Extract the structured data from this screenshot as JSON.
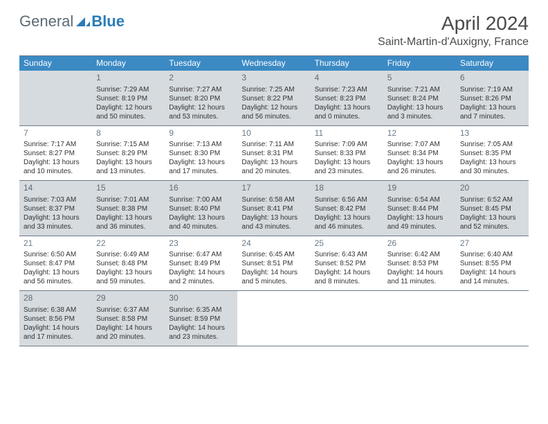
{
  "logo": {
    "general": "General",
    "blue": "Blue"
  },
  "title": "April 2024",
  "location": "Saint-Martin-d'Auxigny, France",
  "colors": {
    "header_bar": "#3b8ac4",
    "shaded_cell": "#d6dbdf",
    "border": "#6b7a88",
    "text": "#333333",
    "logo_gray": "#5c6a72",
    "logo_blue": "#2a7bb8"
  },
  "weekdays": [
    "Sunday",
    "Monday",
    "Tuesday",
    "Wednesday",
    "Thursday",
    "Friday",
    "Saturday"
  ],
  "weeks": [
    [
      {
        "num": "",
        "sunrise": "",
        "sunset": "",
        "day1": "",
        "day2": "",
        "shaded": true
      },
      {
        "num": "1",
        "sunrise": "Sunrise: 7:29 AM",
        "sunset": "Sunset: 8:19 PM",
        "day1": "Daylight: 12 hours",
        "day2": "and 50 minutes.",
        "shaded": true
      },
      {
        "num": "2",
        "sunrise": "Sunrise: 7:27 AM",
        "sunset": "Sunset: 8:20 PM",
        "day1": "Daylight: 12 hours",
        "day2": "and 53 minutes.",
        "shaded": true
      },
      {
        "num": "3",
        "sunrise": "Sunrise: 7:25 AM",
        "sunset": "Sunset: 8:22 PM",
        "day1": "Daylight: 12 hours",
        "day2": "and 56 minutes.",
        "shaded": true
      },
      {
        "num": "4",
        "sunrise": "Sunrise: 7:23 AM",
        "sunset": "Sunset: 8:23 PM",
        "day1": "Daylight: 13 hours",
        "day2": "and 0 minutes.",
        "shaded": true
      },
      {
        "num": "5",
        "sunrise": "Sunrise: 7:21 AM",
        "sunset": "Sunset: 8:24 PM",
        "day1": "Daylight: 13 hours",
        "day2": "and 3 minutes.",
        "shaded": true
      },
      {
        "num": "6",
        "sunrise": "Sunrise: 7:19 AM",
        "sunset": "Sunset: 8:26 PM",
        "day1": "Daylight: 13 hours",
        "day2": "and 7 minutes.",
        "shaded": true
      }
    ],
    [
      {
        "num": "7",
        "sunrise": "Sunrise: 7:17 AM",
        "sunset": "Sunset: 8:27 PM",
        "day1": "Daylight: 13 hours",
        "day2": "and 10 minutes.",
        "shaded": false
      },
      {
        "num": "8",
        "sunrise": "Sunrise: 7:15 AM",
        "sunset": "Sunset: 8:29 PM",
        "day1": "Daylight: 13 hours",
        "day2": "and 13 minutes.",
        "shaded": false
      },
      {
        "num": "9",
        "sunrise": "Sunrise: 7:13 AM",
        "sunset": "Sunset: 8:30 PM",
        "day1": "Daylight: 13 hours",
        "day2": "and 17 minutes.",
        "shaded": false
      },
      {
        "num": "10",
        "sunrise": "Sunrise: 7:11 AM",
        "sunset": "Sunset: 8:31 PM",
        "day1": "Daylight: 13 hours",
        "day2": "and 20 minutes.",
        "shaded": false
      },
      {
        "num": "11",
        "sunrise": "Sunrise: 7:09 AM",
        "sunset": "Sunset: 8:33 PM",
        "day1": "Daylight: 13 hours",
        "day2": "and 23 minutes.",
        "shaded": false
      },
      {
        "num": "12",
        "sunrise": "Sunrise: 7:07 AM",
        "sunset": "Sunset: 8:34 PM",
        "day1": "Daylight: 13 hours",
        "day2": "and 26 minutes.",
        "shaded": false
      },
      {
        "num": "13",
        "sunrise": "Sunrise: 7:05 AM",
        "sunset": "Sunset: 8:35 PM",
        "day1": "Daylight: 13 hours",
        "day2": "and 30 minutes.",
        "shaded": false
      }
    ],
    [
      {
        "num": "14",
        "sunrise": "Sunrise: 7:03 AM",
        "sunset": "Sunset: 8:37 PM",
        "day1": "Daylight: 13 hours",
        "day2": "and 33 minutes.",
        "shaded": true
      },
      {
        "num": "15",
        "sunrise": "Sunrise: 7:01 AM",
        "sunset": "Sunset: 8:38 PM",
        "day1": "Daylight: 13 hours",
        "day2": "and 36 minutes.",
        "shaded": true
      },
      {
        "num": "16",
        "sunrise": "Sunrise: 7:00 AM",
        "sunset": "Sunset: 8:40 PM",
        "day1": "Daylight: 13 hours",
        "day2": "and 40 minutes.",
        "shaded": true
      },
      {
        "num": "17",
        "sunrise": "Sunrise: 6:58 AM",
        "sunset": "Sunset: 8:41 PM",
        "day1": "Daylight: 13 hours",
        "day2": "and 43 minutes.",
        "shaded": true
      },
      {
        "num": "18",
        "sunrise": "Sunrise: 6:56 AM",
        "sunset": "Sunset: 8:42 PM",
        "day1": "Daylight: 13 hours",
        "day2": "and 46 minutes.",
        "shaded": true
      },
      {
        "num": "19",
        "sunrise": "Sunrise: 6:54 AM",
        "sunset": "Sunset: 8:44 PM",
        "day1": "Daylight: 13 hours",
        "day2": "and 49 minutes.",
        "shaded": true
      },
      {
        "num": "20",
        "sunrise": "Sunrise: 6:52 AM",
        "sunset": "Sunset: 8:45 PM",
        "day1": "Daylight: 13 hours",
        "day2": "and 52 minutes.",
        "shaded": true
      }
    ],
    [
      {
        "num": "21",
        "sunrise": "Sunrise: 6:50 AM",
        "sunset": "Sunset: 8:47 PM",
        "day1": "Daylight: 13 hours",
        "day2": "and 56 minutes.",
        "shaded": false
      },
      {
        "num": "22",
        "sunrise": "Sunrise: 6:49 AM",
        "sunset": "Sunset: 8:48 PM",
        "day1": "Daylight: 13 hours",
        "day2": "and 59 minutes.",
        "shaded": false
      },
      {
        "num": "23",
        "sunrise": "Sunrise: 6:47 AM",
        "sunset": "Sunset: 8:49 PM",
        "day1": "Daylight: 14 hours",
        "day2": "and 2 minutes.",
        "shaded": false
      },
      {
        "num": "24",
        "sunrise": "Sunrise: 6:45 AM",
        "sunset": "Sunset: 8:51 PM",
        "day1": "Daylight: 14 hours",
        "day2": "and 5 minutes.",
        "shaded": false
      },
      {
        "num": "25",
        "sunrise": "Sunrise: 6:43 AM",
        "sunset": "Sunset: 8:52 PM",
        "day1": "Daylight: 14 hours",
        "day2": "and 8 minutes.",
        "shaded": false
      },
      {
        "num": "26",
        "sunrise": "Sunrise: 6:42 AM",
        "sunset": "Sunset: 8:53 PM",
        "day1": "Daylight: 14 hours",
        "day2": "and 11 minutes.",
        "shaded": false
      },
      {
        "num": "27",
        "sunrise": "Sunrise: 6:40 AM",
        "sunset": "Sunset: 8:55 PM",
        "day1": "Daylight: 14 hours",
        "day2": "and 14 minutes.",
        "shaded": false
      }
    ],
    [
      {
        "num": "28",
        "sunrise": "Sunrise: 6:38 AM",
        "sunset": "Sunset: 8:56 PM",
        "day1": "Daylight: 14 hours",
        "day2": "and 17 minutes.",
        "shaded": true
      },
      {
        "num": "29",
        "sunrise": "Sunrise: 6:37 AM",
        "sunset": "Sunset: 8:58 PM",
        "day1": "Daylight: 14 hours",
        "day2": "and 20 minutes.",
        "shaded": true
      },
      {
        "num": "30",
        "sunrise": "Sunrise: 6:35 AM",
        "sunset": "Sunset: 8:59 PM",
        "day1": "Daylight: 14 hours",
        "day2": "and 23 minutes.",
        "shaded": true
      },
      {
        "num": "",
        "sunrise": "",
        "sunset": "",
        "day1": "",
        "day2": "",
        "shaded": false
      },
      {
        "num": "",
        "sunrise": "",
        "sunset": "",
        "day1": "",
        "day2": "",
        "shaded": false
      },
      {
        "num": "",
        "sunrise": "",
        "sunset": "",
        "day1": "",
        "day2": "",
        "shaded": false
      },
      {
        "num": "",
        "sunrise": "",
        "sunset": "",
        "day1": "",
        "day2": "",
        "shaded": false
      }
    ]
  ]
}
